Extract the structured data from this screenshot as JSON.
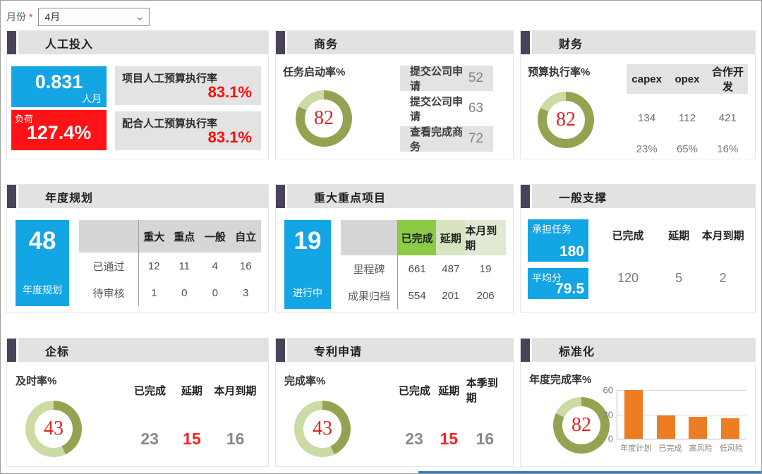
{
  "filter_bar": {
    "label": "月份",
    "required_mark": "*",
    "value": "4月"
  },
  "colors": {
    "accent_blue": "#14a5e4",
    "alert_red": "#fd1216",
    "value_red": "#fb0e0e",
    "donut_dark": "#94a352",
    "donut_light": "#ccdaa4",
    "green_strong": "#8ccb46",
    "green_light": "#d7e4c0",
    "green_lighter": "#e0ead3",
    "header_square": "#4a4259",
    "header_bg": "#e2e2e2",
    "gray_box": "#e3e3e3",
    "bar_orange": "#ed7d23"
  },
  "panels": {
    "labor": {
      "title": "人工投入",
      "metric_value": "0.831",
      "metric_unit": "人月",
      "load_label": "负荷",
      "load_value": "127.4%",
      "rows": [
        {
          "label": "项目人工预算执行率",
          "value": "83.1%"
        },
        {
          "label": "配合人工预算执行率",
          "value": "83.1%"
        }
      ]
    },
    "business": {
      "title": "商务",
      "gauge_label": "任务启动率%",
      "gauge_value": 82,
      "rows": [
        {
          "label": "提交公司申请",
          "value": "52"
        },
        {
          "label": "提交公司申请",
          "value": "63"
        },
        {
          "label": "查看完成商务",
          "value": "72"
        }
      ]
    },
    "finance": {
      "title": "财务",
      "gauge_label": "预算执行率%",
      "gauge_value": 82,
      "columns": [
        "capex",
        "opex",
        "合作开发"
      ],
      "rows": [
        [
          "134",
          "112",
          "421"
        ],
        [
          "23%",
          "65%",
          "16%"
        ]
      ]
    },
    "annual_plan": {
      "title": "年度规划",
      "metric_value": "48",
      "metric_label": "年度规划",
      "columns": [
        "重大",
        "重点",
        "一般",
        "自立"
      ],
      "rows": [
        {
          "label": "已通过",
          "values": [
            "12",
            "11",
            "4",
            "16"
          ]
        },
        {
          "label": "待审核",
          "values": [
            "1",
            "0",
            "0",
            "3"
          ]
        }
      ]
    },
    "key_projects": {
      "title": "重大重点项目",
      "metric_value": "19",
      "metric_label": "进行中",
      "columns": [
        "已完成",
        "延期",
        "本月到期"
      ],
      "rows": [
        {
          "label": "里程碑",
          "values": [
            "661",
            "487",
            "19"
          ]
        },
        {
          "label": "成果归档",
          "values": [
            "554",
            "201",
            "206"
          ]
        }
      ]
    },
    "general_support": {
      "title": "一般支撑",
      "cards": [
        {
          "label": "承担任务",
          "value": "180"
        },
        {
          "label": "平均分",
          "value": "79.5"
        }
      ],
      "columns": [
        "已完成",
        "延期",
        "本月到期"
      ],
      "values": [
        "120",
        "5",
        "2"
      ]
    },
    "enterprise_std": {
      "title": "企标",
      "gauge_label": "及时率%",
      "gauge_value": 43,
      "columns": [
        "已完成",
        "延期",
        "本月到期"
      ],
      "values": [
        {
          "text": "23",
          "highlight": false
        },
        {
          "text": "15",
          "highlight": true
        },
        {
          "text": "16",
          "highlight": false
        }
      ]
    },
    "patents": {
      "title": "专利申请",
      "gauge_label": "完成率%",
      "gauge_value": 43,
      "columns": [
        "已完成",
        "延期",
        "本季到期"
      ],
      "values": [
        {
          "text": "23",
          "highlight": false
        },
        {
          "text": "15",
          "highlight": true
        },
        {
          "text": "16",
          "highlight": false
        }
      ]
    },
    "standardization": {
      "title": "标准化",
      "gauge_label": "年度完成率%",
      "gauge_value": 82,
      "chart_data": {
        "type": "bar",
        "categories": [
          "年度计划",
          "已完成",
          "高风险",
          "低风险"
        ],
        "values": [
          60,
          29,
          27,
          25
        ],
        "yticks": [
          0,
          30,
          60
        ],
        "ylim": [
          0,
          60
        ],
        "bar_color": "#ed7d23",
        "grid": true
      }
    }
  }
}
